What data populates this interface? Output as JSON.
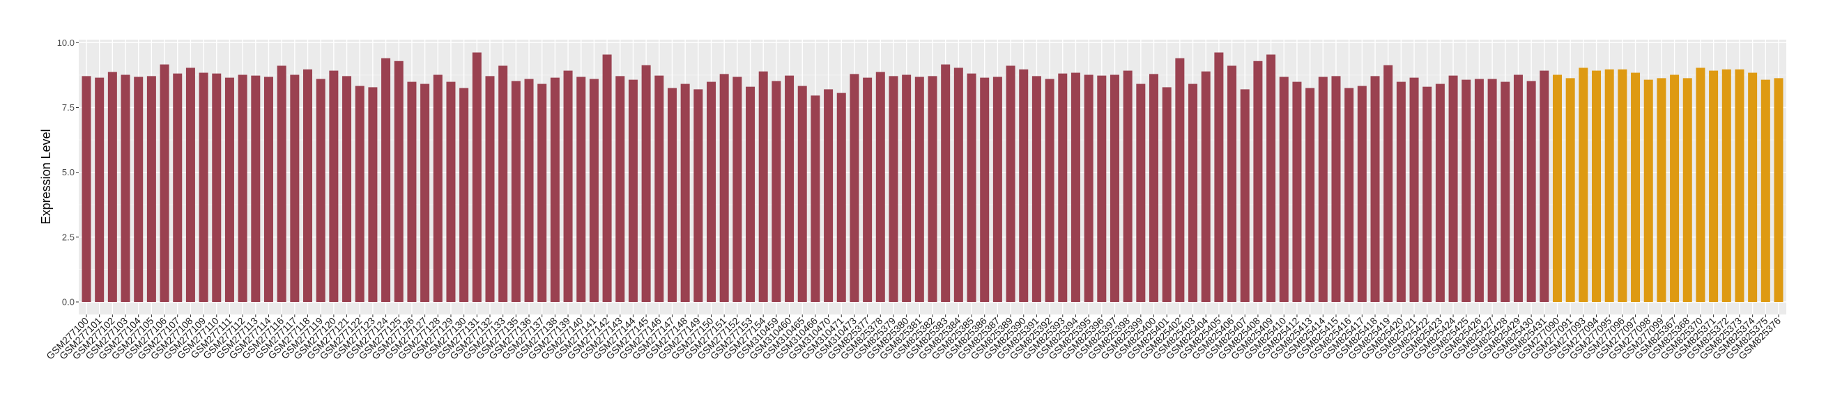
{
  "chart_data": {
    "type": "bar",
    "title": "",
    "xlabel": "",
    "ylabel": "Expression Level",
    "ylim": [
      0,
      10
    ],
    "yticks": [
      "0.0",
      "2.5",
      "5.0",
      "7.5",
      "10.0"
    ],
    "grid": true,
    "legend": "none",
    "panel_background": "#EBEBEB",
    "series": [
      {
        "color": "#9A4150",
        "categories": [
          "GSM277100",
          "GSM277101",
          "GSM277102",
          "GSM277103",
          "GSM277104",
          "GSM277105",
          "GSM277106",
          "GSM277107",
          "GSM277108",
          "GSM277109",
          "GSM277110",
          "GSM277111",
          "GSM277112",
          "GSM277113",
          "GSM277114",
          "GSM277116",
          "GSM277117",
          "GSM277118",
          "GSM277119",
          "GSM277120",
          "GSM277121",
          "GSM277122",
          "GSM277123",
          "GSM277124",
          "GSM277125",
          "GSM277126",
          "GSM277127",
          "GSM277128",
          "GSM277129",
          "GSM277130",
          "GSM277131",
          "GSM277132",
          "GSM277133",
          "GSM277135",
          "GSM277136",
          "GSM277137",
          "GSM277138",
          "GSM277139",
          "GSM277140",
          "GSM277141",
          "GSM277142",
          "GSM277143",
          "GSM277144",
          "GSM277145",
          "GSM277146",
          "GSM277147",
          "GSM277148",
          "GSM277149",
          "GSM277150",
          "GSM277151",
          "GSM277152",
          "GSM277153",
          "GSM277154",
          "GSM310459",
          "GSM310460",
          "GSM310465",
          "GSM310466",
          "GSM310470",
          "GSM310471",
          "GSM310473",
          "GSM825377",
          "GSM825378",
          "GSM825379",
          "GSM825380",
          "GSM825381",
          "GSM825382",
          "GSM825383",
          "GSM825384",
          "GSM825385",
          "GSM825386",
          "GSM825387",
          "GSM825389",
          "GSM825390",
          "GSM825391",
          "GSM825392",
          "GSM825393",
          "GSM825394",
          "GSM825395",
          "GSM825396",
          "GSM825397",
          "GSM825398",
          "GSM825399",
          "GSM825400",
          "GSM825401",
          "GSM825402",
          "GSM825403",
          "GSM825404",
          "GSM825405",
          "GSM825406",
          "GSM825407",
          "GSM825408",
          "GSM825409",
          "GSM825410",
          "GSM825412",
          "GSM825413",
          "GSM825414",
          "GSM825415",
          "GSM825416",
          "GSM825417",
          "GSM825418",
          "GSM825419",
          "GSM825420",
          "GSM825421",
          "GSM825422",
          "GSM825423",
          "GSM825424",
          "GSM825425",
          "GSM825426",
          "GSM825427",
          "GSM825428",
          "GSM825429",
          "GSM825430",
          "GSM825431"
        ],
        "values": [
          8.71,
          8.65,
          8.87,
          8.76,
          8.68,
          8.71,
          9.16,
          8.81,
          9.03,
          8.84,
          8.81,
          8.65,
          8.76,
          8.73,
          8.68,
          9.11,
          8.76,
          8.97,
          8.6,
          8.92,
          8.71,
          8.33,
          8.28,
          9.4,
          9.29,
          8.49,
          8.41,
          8.76,
          8.49,
          8.25,
          9.62,
          8.71,
          9.11,
          8.52,
          8.6,
          8.41,
          8.65,
          8.92,
          8.68,
          8.6,
          9.54,
          8.71,
          8.57,
          9.13,
          8.73,
          8.25,
          8.41,
          8.2,
          8.49,
          8.79,
          8.68,
          8.3,
          8.89,
          8.52,
          8.73,
          8.33,
          7.96,
          8.2,
          8.06,
          8.79,
          8.65,
          8.87,
          8.71,
          8.76,
          8.68,
          8.71,
          9.16,
          9.03,
          8.81,
          8.65,
          8.68,
          9.11,
          8.97,
          8.71,
          8.6,
          8.81,
          8.84,
          8.76,
          8.73,
          8.76,
          8.92,
          8.41,
          8.79,
          8.28,
          9.4,
          8.41,
          8.89,
          9.62,
          9.11,
          8.2,
          9.29,
          9.54,
          8.68,
          8.49,
          8.25,
          8.68,
          8.71,
          8.25,
          8.33,
          8.71,
          9.13,
          8.49,
          8.65,
          8.3,
          8.41,
          8.73,
          8.57,
          8.6,
          8.6,
          8.49,
          8.76,
          8.52,
          8.92
        ]
      },
      {
        "color": "#DE9A12",
        "categories": [
          "GSM277090",
          "GSM277091",
          "GSM277093",
          "GSM277094",
          "GSM277095",
          "GSM277096",
          "GSM277097",
          "GSM277098",
          "GSM277099",
          "GSM825367",
          "GSM825368",
          "GSM825370",
          "GSM825371",
          "GSM825372",
          "GSM825373",
          "GSM825374",
          "GSM825375",
          "GSM825376"
        ],
        "values": [
          8.76,
          8.63,
          9.03,
          8.92,
          8.97,
          8.97,
          8.84,
          8.57,
          8.63,
          8.76,
          8.63,
          9.03,
          8.92,
          8.97,
          8.97,
          8.84,
          8.57,
          8.63
        ]
      }
    ]
  }
}
